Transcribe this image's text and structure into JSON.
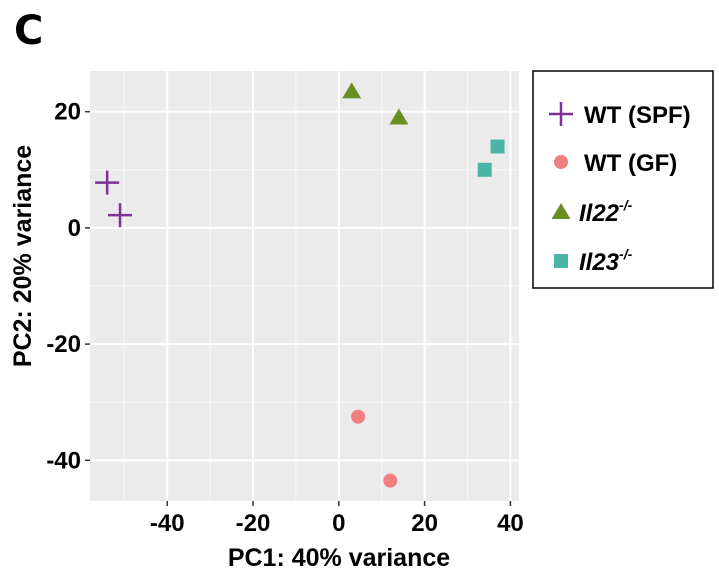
{
  "panel_label": "C",
  "chart_data": {
    "type": "scatter",
    "xlabel": "PC1: 40% variance",
    "ylabel": "PC2: 20% variance",
    "xlim": [
      -58,
      42
    ],
    "ylim": [
      -47,
      27
    ],
    "x_ticks": [
      -40,
      -20,
      0,
      20,
      40
    ],
    "y_ticks": [
      -40,
      -20,
      0,
      20
    ],
    "grid": true,
    "legend_position": "right",
    "series": [
      {
        "name": "WT (SPF)",
        "name_main": "WT (SPF)",
        "name_sup": "",
        "italic": false,
        "marker": "plus",
        "color": "#7B3294",
        "points": [
          {
            "x": -54,
            "y": 7.8
          },
          {
            "x": -51,
            "y": 2.2
          }
        ]
      },
      {
        "name": "WT (GF)",
        "name_main": "WT (GF)",
        "name_sup": "",
        "italic": false,
        "marker": "circle",
        "color": "#F08080",
        "points": [
          {
            "x": 4.5,
            "y": -32.5
          },
          {
            "x": 12,
            "y": -43.5
          }
        ]
      },
      {
        "name": "Il22-/-",
        "name_main": "Il22",
        "name_sup": "-/-",
        "italic": true,
        "marker": "triangle",
        "color": "#6B8E23",
        "points": [
          {
            "x": 3,
            "y": 23.5
          },
          {
            "x": 14,
            "y": 19
          }
        ]
      },
      {
        "name": "Il23-/-",
        "name_main": "Il23",
        "name_sup": "-/-",
        "italic": true,
        "marker": "square",
        "color": "#48B5A7",
        "points": [
          {
            "x": 34,
            "y": 10
          },
          {
            "x": 37,
            "y": 14
          }
        ]
      }
    ]
  }
}
